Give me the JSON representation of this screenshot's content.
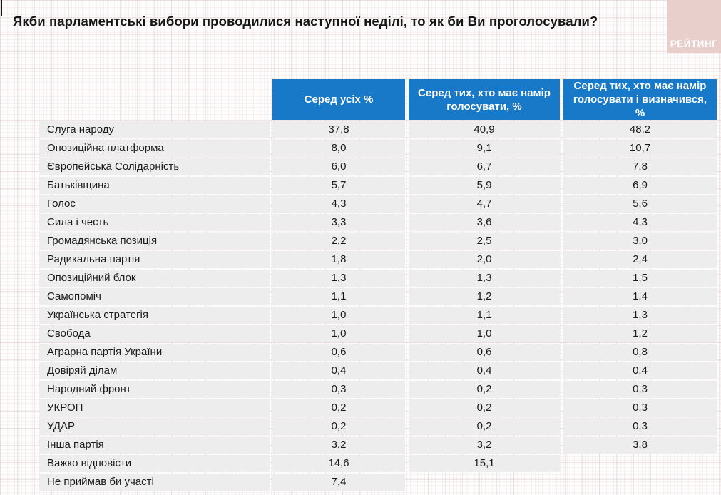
{
  "title": "Якби парламентські вибори проводилися наступної неділі, то як би Ви проголосували?",
  "logo": {
    "text": "РЕЙТИНГ"
  },
  "colors": {
    "header_blue": "#1879c9",
    "row_bg": "#ededed",
    "logo_pink": "#e8cfcb",
    "title_text": "#161616"
  },
  "chart_data": {
    "type": "table",
    "title": "Якби парламентські вибори проводилися наступної неділі, то як би Ви проголосували?",
    "columns": [
      "Серед усіх %",
      "Серед тих, хто має намір голосувати, %",
      "Серед тих, хто має намір голосувати і визначився, %"
    ],
    "rows": [
      {
        "label": "Слуга народу",
        "values": [
          "37,8",
          "40,9",
          "48,2"
        ]
      },
      {
        "label": "Опозиційна платформа",
        "values": [
          "8,0",
          "9,1",
          "10,7"
        ]
      },
      {
        "label": "Європейська Солідарність",
        "values": [
          "6,0",
          "6,7",
          "7,8"
        ]
      },
      {
        "label": "Батьківщина",
        "values": [
          "5,7",
          "5,9",
          "6,9"
        ]
      },
      {
        "label": "Голос",
        "values": [
          "4,3",
          "4,7",
          "5,6"
        ]
      },
      {
        "label": "Сила і честь",
        "values": [
          "3,3",
          "3,6",
          "4,3"
        ]
      },
      {
        "label": "Громадянська позиція",
        "values": [
          "2,2",
          "2,5",
          "3,0"
        ]
      },
      {
        "label": "Радикальна партія",
        "values": [
          "1,8",
          "2,0",
          "2,4"
        ]
      },
      {
        "label": "Опозиційний блок",
        "values": [
          "1,3",
          "1,3",
          "1,5"
        ]
      },
      {
        "label": "Самопоміч",
        "values": [
          "1,1",
          "1,2",
          "1,4"
        ]
      },
      {
        "label": "Українська стратегія",
        "values": [
          "1,0",
          "1,1",
          "1,3"
        ]
      },
      {
        "label": "Свобода",
        "values": [
          "1,0",
          "1,0",
          "1,2"
        ]
      },
      {
        "label": "Аграрна партія України",
        "values": [
          "0,6",
          "0,6",
          "0,8"
        ]
      },
      {
        "label": "Довіряй ділам",
        "values": [
          "0,4",
          "0,4",
          "0,4"
        ]
      },
      {
        "label": "Народний фронт",
        "values": [
          "0,3",
          "0,2",
          "0,3"
        ]
      },
      {
        "label": "УКРОП",
        "values": [
          "0,2",
          "0,2",
          "0,3"
        ]
      },
      {
        "label": "УДАР",
        "values": [
          "0,2",
          "0,2",
          "0,3"
        ]
      },
      {
        "label": "Інша партія",
        "values": [
          "3,2",
          "3,2",
          "3,8"
        ]
      },
      {
        "label": "Важко відповісти",
        "values": [
          "14,6",
          "15,1",
          null
        ]
      },
      {
        "label": "Не приймав би участі",
        "values": [
          "7,4",
          null,
          null
        ]
      }
    ]
  }
}
